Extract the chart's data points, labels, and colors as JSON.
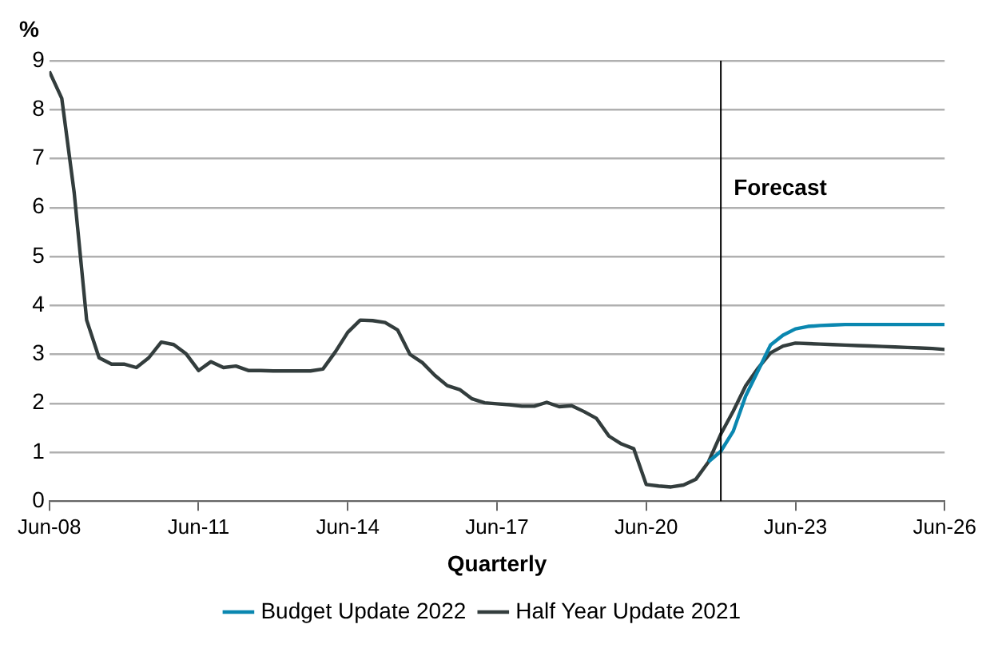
{
  "chart_data": {
    "type": "line",
    "ylabel": "%",
    "xlabel": "Quarterly",
    "x": [
      "2008-06",
      "2008-09",
      "2008-12",
      "2009-03",
      "2009-06",
      "2009-09",
      "2009-12",
      "2010-03",
      "2010-06",
      "2010-09",
      "2010-12",
      "2011-03",
      "2011-06",
      "2011-09",
      "2011-12",
      "2012-03",
      "2012-06",
      "2012-09",
      "2012-12",
      "2013-03",
      "2013-06",
      "2013-09",
      "2013-12",
      "2014-03",
      "2014-06",
      "2014-09",
      "2014-12",
      "2015-03",
      "2015-06",
      "2015-09",
      "2015-12",
      "2016-03",
      "2016-06",
      "2016-09",
      "2016-12",
      "2017-03",
      "2017-06",
      "2017-09",
      "2017-12",
      "2018-03",
      "2018-06",
      "2018-09",
      "2018-12",
      "2019-03",
      "2019-06",
      "2019-09",
      "2019-12",
      "2020-03",
      "2020-06",
      "2020-09",
      "2020-12",
      "2021-03",
      "2021-06",
      "2021-09",
      "2021-12",
      "2022-03",
      "2022-06",
      "2022-09",
      "2022-12",
      "2023-03",
      "2023-06",
      "2023-09",
      "2023-12",
      "2024-03",
      "2024-06",
      "2024-09",
      "2024-12",
      "2025-03",
      "2025-06",
      "2025-09",
      "2025-12",
      "2026-03",
      "2026-06"
    ],
    "series": [
      {
        "name": "Budget Update 2022",
        "color": "#0a87b0",
        "values": [
          null,
          null,
          null,
          null,
          null,
          null,
          null,
          null,
          null,
          null,
          null,
          null,
          null,
          null,
          null,
          null,
          null,
          null,
          null,
          null,
          null,
          null,
          null,
          null,
          null,
          null,
          null,
          null,
          null,
          null,
          null,
          null,
          null,
          null,
          null,
          null,
          null,
          null,
          null,
          null,
          null,
          null,
          null,
          null,
          null,
          null,
          null,
          null,
          null,
          null,
          null,
          null,
          null,
          0.8,
          1.02,
          1.43,
          2.15,
          2.67,
          3.19,
          3.39,
          3.52,
          3.57,
          3.59,
          3.6,
          3.61,
          3.61,
          3.61,
          3.61,
          3.61,
          3.61,
          3.61,
          3.61,
          3.61
        ]
      },
      {
        "name": "Half Year Update 2021",
        "color": "#333d3d",
        "values": [
          8.78,
          8.23,
          6.3,
          3.7,
          2.93,
          2.8,
          2.8,
          2.73,
          2.93,
          3.25,
          3.2,
          3.01,
          2.67,
          2.85,
          2.73,
          2.76,
          2.67,
          2.67,
          2.66,
          2.66,
          2.66,
          2.66,
          2.7,
          3.05,
          3.45,
          3.7,
          3.69,
          3.65,
          3.5,
          3.0,
          2.83,
          2.57,
          2.36,
          2.28,
          2.09,
          2.01,
          1.99,
          1.97,
          1.94,
          1.94,
          2.02,
          1.93,
          1.95,
          1.83,
          1.69,
          1.33,
          1.17,
          1.07,
          0.34,
          0.31,
          0.29,
          0.33,
          0.45,
          0.8,
          1.37,
          1.84,
          2.36,
          2.72,
          3.03,
          3.17,
          3.23,
          3.22,
          3.21,
          3.2,
          3.19,
          3.18,
          3.17,
          3.16,
          3.15,
          3.14,
          3.13,
          3.12,
          3.1
        ]
      }
    ],
    "xlim": [
      "2008-06",
      "2026-06"
    ],
    "xticks": [
      {
        "value": "2008-06",
        "label": "Jun-08"
      },
      {
        "value": "2011-06",
        "label": "Jun-11"
      },
      {
        "value": "2014-06",
        "label": "Jun-14"
      },
      {
        "value": "2017-06",
        "label": "Jun-17"
      },
      {
        "value": "2020-06",
        "label": "Jun-20"
      },
      {
        "value": "2023-06",
        "label": "Jun-23"
      },
      {
        "value": "2026-06",
        "label": "Jun-26"
      }
    ],
    "ylim": [
      0,
      9
    ],
    "yticks": [
      0,
      1,
      2,
      3,
      4,
      5,
      6,
      7,
      8,
      9
    ],
    "ref_lines": [
      {
        "axis": "x",
        "value": "2021-12",
        "label": "Forecast",
        "color": "#000000"
      }
    ],
    "grid": "y",
    "legend": "bottom",
    "marker": "none",
    "line_style": "solid"
  }
}
